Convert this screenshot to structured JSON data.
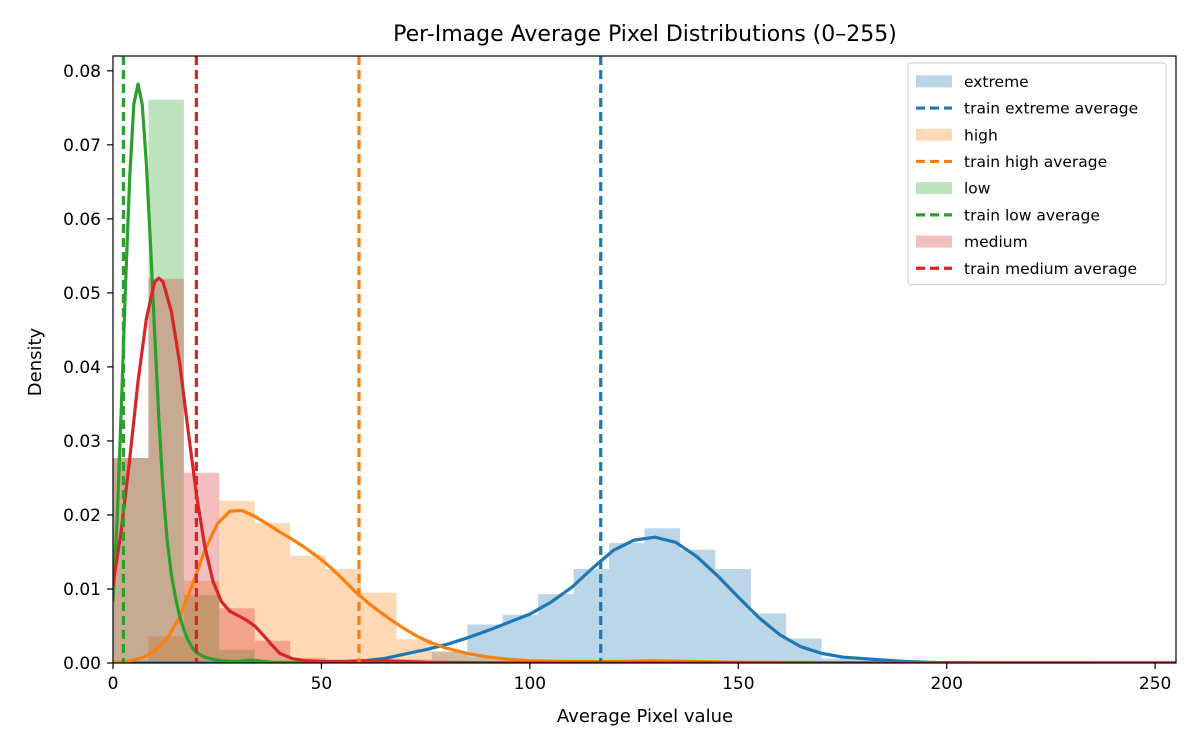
{
  "chart_data": {
    "type": "histogram",
    "title": "Per-Image Average Pixel Distributions (0–255)",
    "xlabel": "Average Pixel value",
    "ylabel": "Density",
    "xlim": [
      0,
      255
    ],
    "ylim": [
      0,
      0.082
    ],
    "xticks": [
      0,
      50,
      100,
      150,
      200,
      250
    ],
    "yticks": [
      0.0,
      0.01,
      0.02,
      0.03,
      0.04,
      0.05,
      0.06,
      0.07,
      0.08
    ],
    "bin_width": 8.5,
    "legend_position": "top-right",
    "grid": false,
    "series": [
      {
        "name": "extreme",
        "color": "#1f77b4",
        "train_average": 117,
        "train_average_label": "train extreme average",
        "hist": [
          [
            59.5,
            0.0002
          ],
          [
            68,
            0.0005
          ],
          [
            76.5,
            0.0015
          ],
          [
            85,
            0.0052
          ],
          [
            93.5,
            0.0065
          ],
          [
            102,
            0.0093
          ],
          [
            110.5,
            0.0127
          ],
          [
            119,
            0.0162
          ],
          [
            127.5,
            0.0182
          ],
          [
            136,
            0.0153
          ],
          [
            144.5,
            0.0127
          ],
          [
            153,
            0.0067
          ],
          [
            161.5,
            0.0033
          ],
          [
            170,
            0.0006
          ],
          [
            178.5,
            0.0005
          ],
          [
            187,
            0.0003
          ],
          [
            195.5,
            0.0001
          ]
        ],
        "kde": [
          [
            0,
            0
          ],
          [
            40,
            0
          ],
          [
            55,
            0.0001
          ],
          [
            60,
            0.0003
          ],
          [
            65,
            0.0006
          ],
          [
            70,
            0.0012
          ],
          [
            75,
            0.0018
          ],
          [
            80,
            0.0025
          ],
          [
            85,
            0.0034
          ],
          [
            90,
            0.0044
          ],
          [
            95,
            0.0055
          ],
          [
            100,
            0.0066
          ],
          [
            105,
            0.0082
          ],
          [
            110,
            0.0102
          ],
          [
            115,
            0.0128
          ],
          [
            120,
            0.0152
          ],
          [
            125,
            0.0166
          ],
          [
            130,
            0.017
          ],
          [
            135,
            0.0163
          ],
          [
            140,
            0.0144
          ],
          [
            145,
            0.0118
          ],
          [
            150,
            0.0089
          ],
          [
            155,
            0.0061
          ],
          [
            160,
            0.0038
          ],
          [
            165,
            0.0022
          ],
          [
            170,
            0.0013
          ],
          [
            175,
            0.0008
          ],
          [
            180,
            0.0006
          ],
          [
            185,
            0.0004
          ],
          [
            190,
            0.0002
          ],
          [
            195,
            0.0001
          ],
          [
            200,
            4e-05
          ],
          [
            210,
            0
          ],
          [
            255,
            0
          ]
        ]
      },
      {
        "name": "high",
        "color": "#ff7f0e",
        "train_average": 59,
        "train_average_label": "train high average",
        "hist": [
          [
            0,
            0.0003
          ],
          [
            8.5,
            0.0036
          ],
          [
            17,
            0.0111
          ],
          [
            25.5,
            0.0219
          ],
          [
            34,
            0.0189
          ],
          [
            42.5,
            0.0145
          ],
          [
            51,
            0.0127
          ],
          [
            59.5,
            0.0095
          ],
          [
            68,
            0.0032
          ],
          [
            76.5,
            0.0016
          ],
          [
            85,
            0.0008
          ],
          [
            93.5,
            0.0004
          ],
          [
            102,
            0.0002
          ],
          [
            110.5,
            0.0001
          ]
        ],
        "kde": [
          [
            0,
            0
          ],
          [
            2,
            0.0001
          ],
          [
            4,
            0.0003
          ],
          [
            7,
            0.0007
          ],
          [
            10,
            0.0016
          ],
          [
            13,
            0.0033
          ],
          [
            16,
            0.0062
          ],
          [
            19,
            0.0105
          ],
          [
            22,
            0.0152
          ],
          [
            25,
            0.0188
          ],
          [
            28,
            0.0205
          ],
          [
            31,
            0.0206
          ],
          [
            34,
            0.0198
          ],
          [
            37,
            0.0188
          ],
          [
            40,
            0.0177
          ],
          [
            43,
            0.0167
          ],
          [
            46,
            0.0156
          ],
          [
            49,
            0.0144
          ],
          [
            52,
            0.013
          ],
          [
            55,
            0.0114
          ],
          [
            58,
            0.0097
          ],
          [
            61,
            0.0082
          ],
          [
            64,
            0.0069
          ],
          [
            67,
            0.0057
          ],
          [
            70,
            0.0046
          ],
          [
            73,
            0.0036
          ],
          [
            76,
            0.0028
          ],
          [
            80,
            0.002
          ],
          [
            85,
            0.0013
          ],
          [
            90,
            0.0008
          ],
          [
            95,
            0.0005
          ],
          [
            100,
            0.0003
          ],
          [
            110,
            0.0002
          ],
          [
            120,
            0.0002
          ],
          [
            130,
            0.0003
          ],
          [
            140,
            0.0002
          ],
          [
            150,
            0.0001
          ],
          [
            170,
            5e-05
          ],
          [
            255,
            0
          ]
        ]
      },
      {
        "name": "low",
        "color": "#2ca02c",
        "train_average": 2.5,
        "train_average_label": "train low average",
        "hist": [
          [
            0,
            0.0277
          ],
          [
            8.5,
            0.0761
          ],
          [
            17,
            0.0092
          ],
          [
            25.5,
            0.0018
          ],
          [
            34,
            0.0002
          ]
        ],
        "kde": [
          [
            0,
            0.0085
          ],
          [
            1,
            0.0195
          ],
          [
            2,
            0.0345
          ],
          [
            3,
            0.051
          ],
          [
            4,
            0.0655
          ],
          [
            5,
            0.0755
          ],
          [
            6,
            0.0782
          ],
          [
            7,
            0.0755
          ],
          [
            8,
            0.0675
          ],
          [
            9,
            0.0565
          ],
          [
            10,
            0.0445
          ],
          [
            11,
            0.033
          ],
          [
            12,
            0.0235
          ],
          [
            13,
            0.0165
          ],
          [
            14,
            0.012
          ],
          [
            15,
            0.0088
          ],
          [
            16,
            0.0063
          ],
          [
            17,
            0.0045
          ],
          [
            18,
            0.0031
          ],
          [
            19,
            0.0021
          ],
          [
            20,
            0.0014
          ],
          [
            22,
            0.0008
          ],
          [
            24,
            0.0005
          ],
          [
            26,
            0.0003
          ],
          [
            28,
            0.0002
          ],
          [
            30,
            0.0002
          ],
          [
            33,
            0.0004
          ],
          [
            35,
            0.0003
          ],
          [
            38,
            0.0001
          ],
          [
            45,
            5e-05
          ],
          [
            60,
            0.0001
          ],
          [
            70,
            0
          ],
          [
            255,
            0
          ]
        ]
      },
      {
        "name": "medium",
        "color": "#d62728",
        "train_average": 20,
        "train_average_label": "train medium average",
        "hist": [
          [
            0,
            0.0277
          ],
          [
            8.5,
            0.0519
          ],
          [
            17,
            0.0257
          ],
          [
            25.5,
            0.0074
          ],
          [
            34,
            0.003
          ],
          [
            42.5,
            0.0007
          ],
          [
            51,
            0.0003
          ],
          [
            59.5,
            0.0002
          ],
          [
            68,
            0.0001
          ]
        ],
        "kde": [
          [
            0,
            0.0105
          ],
          [
            2,
            0.018
          ],
          [
            4,
            0.0275
          ],
          [
            6,
            0.038
          ],
          [
            8,
            0.0465
          ],
          [
            10,
            0.0515
          ],
          [
            11,
            0.052
          ],
          [
            12,
            0.0515
          ],
          [
            14,
            0.0475
          ],
          [
            16,
            0.0405
          ],
          [
            18,
            0.0315
          ],
          [
            20,
            0.0228
          ],
          [
            22,
            0.0158
          ],
          [
            24,
            0.011
          ],
          [
            26,
            0.0083
          ],
          [
            28,
            0.007
          ],
          [
            30,
            0.0064
          ],
          [
            32,
            0.0058
          ],
          [
            34,
            0.005
          ],
          [
            36,
            0.0038
          ],
          [
            38,
            0.0025
          ],
          [
            40,
            0.0013
          ],
          [
            43,
            0.0006
          ],
          [
            46,
            0.0003
          ],
          [
            50,
            0.0002
          ],
          [
            55,
            0.0002
          ],
          [
            60,
            0.0003
          ],
          [
            65,
            0.0003
          ],
          [
            70,
            0.0002
          ],
          [
            75,
            0.0001
          ],
          [
            85,
            5e-05
          ],
          [
            100,
            0
          ],
          [
            255,
            0
          ]
        ]
      }
    ]
  }
}
